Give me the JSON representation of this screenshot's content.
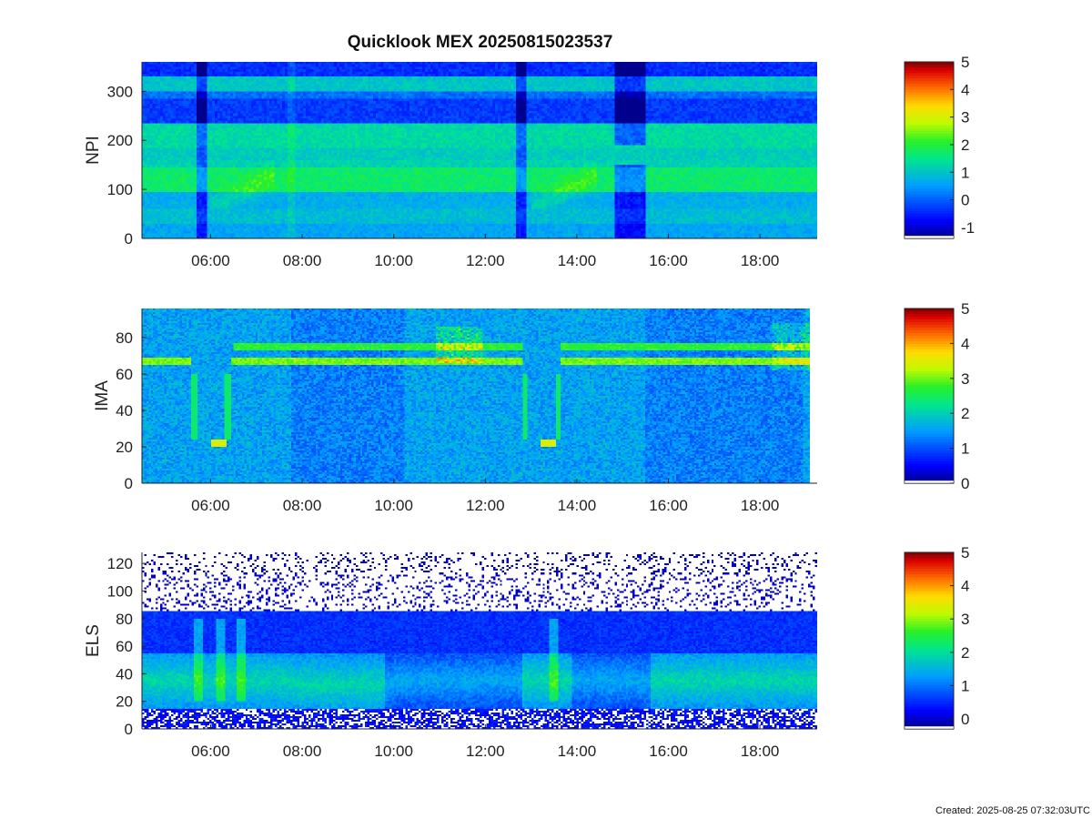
{
  "title": "Quicklook MEX 20250815023537",
  "credit": "Created: 2025-08-25 07:32:03UTC",
  "chart_data": [
    {
      "type": "heatmap",
      "ylabel": "NPI",
      "xlabel": "",
      "x_range_hours": [
        4.5,
        19.25
      ],
      "x_tick_labels": [
        "06:00",
        "08:00",
        "10:00",
        "12:00",
        "14:00",
        "16:00",
        "18:00"
      ],
      "x_tick_hours": [
        6,
        8,
        10,
        12,
        14,
        16,
        18
      ],
      "ylim": [
        0,
        360
      ],
      "y_ticks": [
        0,
        100,
        200,
        300
      ],
      "colorbar": {
        "range": [
          -1.4,
          5
        ],
        "ticks": [
          -1,
          0,
          1,
          2,
          3,
          4,
          5
        ]
      },
      "features": [
        {
          "y_band": [
            0,
            30
          ],
          "level": 0.6
        },
        {
          "y_band": [
            30,
            60
          ],
          "level": 0.9
        },
        {
          "y_band": [
            60,
            95
          ],
          "level": 0.7
        },
        {
          "y_band": [
            95,
            145
          ],
          "level": 1.7
        },
        {
          "y_band": [
            145,
            160
          ],
          "level": 1.2
        },
        {
          "y_band": [
            160,
            185
          ],
          "level": 1.1
        },
        {
          "y_band": [
            185,
            235
          ],
          "level": 1.3
        },
        {
          "y_band": [
            235,
            285
          ],
          "level": -0.3
        },
        {
          "y_band": [
            285,
            300
          ],
          "level": 0.1
        },
        {
          "y_band": [
            300,
            330
          ],
          "level": 1.0
        },
        {
          "y_band": [
            330,
            360
          ],
          "level": -0.4
        }
      ]
    },
    {
      "type": "heatmap",
      "ylabel": "IMA",
      "xlabel": "",
      "x_range_hours": [
        4.5,
        19.25
      ],
      "x_tick_labels": [
        "06:00",
        "08:00",
        "10:00",
        "12:00",
        "14:00",
        "16:00",
        "18:00"
      ],
      "x_tick_hours": [
        6,
        8,
        10,
        12,
        14,
        16,
        18
      ],
      "ylim": [
        0,
        96
      ],
      "y_ticks": [
        0,
        20,
        40,
        60,
        80
      ],
      "colorbar": {
        "range": [
          0,
          5
        ],
        "ticks": [
          0,
          1,
          2,
          3,
          4,
          5
        ]
      },
      "features": [
        {
          "description_level": "background",
          "level": 1.6
        },
        {
          "y_band": [
            21,
            24
          ],
          "x_hours": [
            6.0,
            6.35
          ],
          "level": 3.3
        },
        {
          "y_band": [
            21,
            24
          ],
          "x_hours": [
            13.3,
            13.65
          ],
          "level": 3.3
        },
        {
          "y_center": 67,
          "level": 2.8
        },
        {
          "y_center": 75,
          "level": 2.6
        }
      ]
    },
    {
      "type": "heatmap",
      "ylabel": "ELS",
      "xlabel": "",
      "x_range_hours": [
        4.5,
        19.25
      ],
      "x_tick_labels": [
        "06:00",
        "08:00",
        "10:00",
        "12:00",
        "14:00",
        "16:00",
        "18:00"
      ],
      "x_tick_hours": [
        6,
        8,
        10,
        12,
        14,
        16,
        18
      ],
      "ylim": [
        0,
        128
      ],
      "y_ticks": [
        0,
        20,
        40,
        60,
        80,
        100,
        120
      ],
      "colorbar": {
        "range": [
          -0.3,
          5
        ],
        "ticks": [
          0,
          1,
          2,
          3,
          4,
          5
        ]
      },
      "features": [
        {
          "y_band": [
            0,
            15
          ],
          "level": 0.2
        },
        {
          "y_band": [
            15,
            55
          ],
          "level": 1.8
        },
        {
          "y_band": [
            55,
            85
          ],
          "level": 0.6
        },
        {
          "y_band": [
            85,
            128
          ],
          "level": 0.0
        }
      ]
    }
  ]
}
